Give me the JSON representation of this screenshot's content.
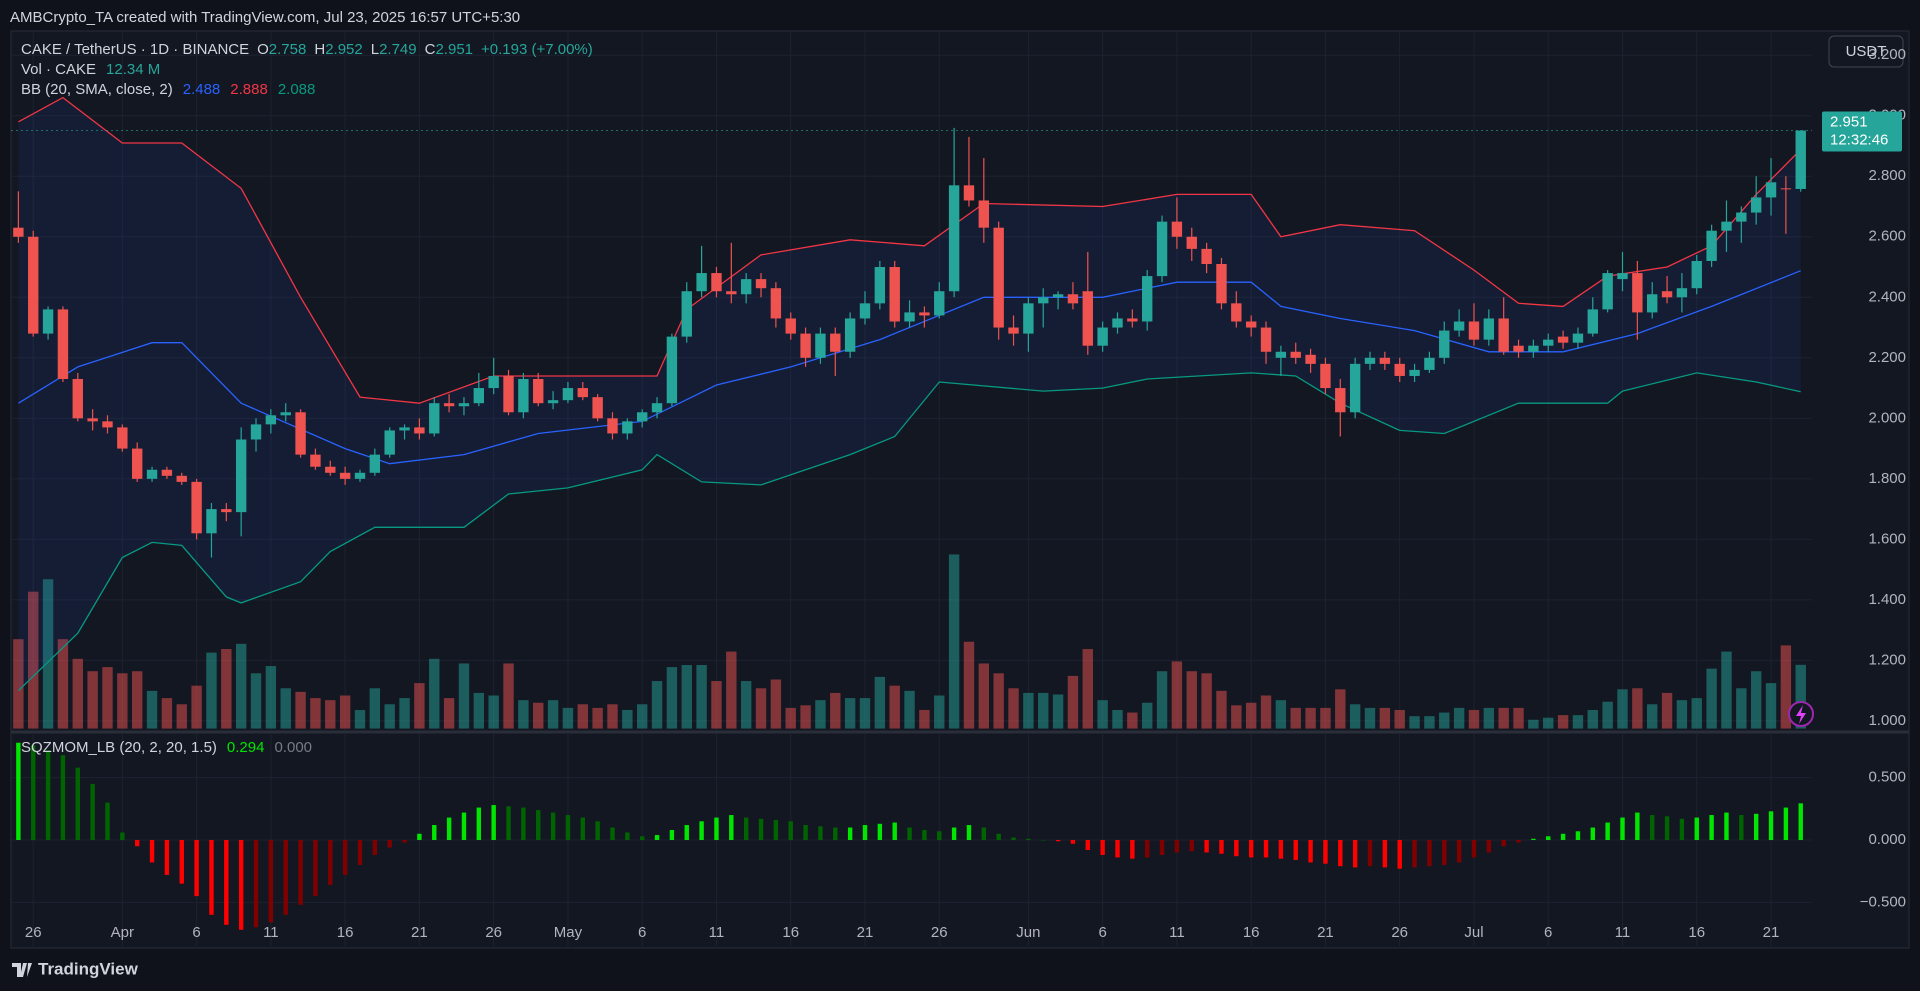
{
  "chart_data": {
    "type": "candlestick",
    "header": "AMBCrypto_TA created with TradingView.com, Jul 23, 2025 16:57 UTC+5:30",
    "title": "CAKE / TetherUS · 1D · BINANCE",
    "ohlc_letters": [
      "O",
      "H",
      "L",
      "C"
    ],
    "change_label": "+0.193 (+7.00%)",
    "currency": "USDT",
    "countdown": "12:32:46",
    "footer": "TradingView",
    "up_color": "#26a69a",
    "down_color": "#ef5350",
    "candles": [
      [
        2.63,
        2.75,
        2.58,
        2.6
      ],
      [
        2.6,
        2.62,
        2.27,
        2.28
      ],
      [
        2.28,
        2.37,
        2.26,
        2.36
      ],
      [
        2.36,
        2.37,
        2.12,
        2.13
      ],
      [
        2.13,
        2.15,
        1.99,
        2.0
      ],
      [
        2.0,
        2.03,
        1.96,
        1.99
      ],
      [
        1.99,
        2.01,
        1.95,
        1.97
      ],
      [
        1.97,
        1.98,
        1.89,
        1.9
      ],
      [
        1.9,
        1.92,
        1.79,
        1.8
      ],
      [
        1.8,
        1.84,
        1.79,
        1.83
      ],
      [
        1.83,
        1.84,
        1.8,
        1.81
      ],
      [
        1.81,
        1.82,
        1.78,
        1.79
      ],
      [
        1.79,
        1.8,
        1.6,
        1.62
      ],
      [
        1.62,
        1.72,
        1.54,
        1.7
      ],
      [
        1.7,
        1.72,
        1.66,
        1.69
      ],
      [
        1.69,
        1.97,
        1.61,
        1.93
      ],
      [
        1.93,
        2.0,
        1.89,
        1.98
      ],
      [
        1.98,
        2.03,
        1.95,
        2.01
      ],
      [
        2.01,
        2.05,
        1.99,
        2.02
      ],
      [
        2.02,
        2.03,
        1.87,
        1.88
      ],
      [
        1.88,
        1.9,
        1.83,
        1.84
      ],
      [
        1.84,
        1.86,
        1.81,
        1.82
      ],
      [
        1.82,
        1.84,
        1.78,
        1.8
      ],
      [
        1.8,
        1.83,
        1.79,
        1.82
      ],
      [
        1.82,
        1.9,
        1.81,
        1.88
      ],
      [
        1.88,
        1.97,
        1.87,
        1.96
      ],
      [
        1.96,
        1.98,
        1.93,
        1.97
      ],
      [
        1.97,
        2.0,
        1.93,
        1.95
      ],
      [
        1.95,
        2.07,
        1.94,
        2.05
      ],
      [
        2.05,
        2.08,
        2.02,
        2.04
      ],
      [
        2.04,
        2.07,
        2.01,
        2.05
      ],
      [
        2.05,
        2.15,
        2.04,
        2.1
      ],
      [
        2.1,
        2.2,
        2.08,
        2.14
      ],
      [
        2.14,
        2.16,
        2.01,
        2.02
      ],
      [
        2.02,
        2.15,
        2.0,
        2.13
      ],
      [
        2.13,
        2.15,
        2.04,
        2.05
      ],
      [
        2.05,
        2.09,
        2.03,
        2.06
      ],
      [
        2.06,
        2.12,
        2.05,
        2.1
      ],
      [
        2.1,
        2.12,
        2.06,
        2.07
      ],
      [
        2.07,
        2.08,
        1.99,
        2.0
      ],
      [
        2.0,
        2.02,
        1.93,
        1.95
      ],
      [
        1.95,
        2.0,
        1.93,
        1.99
      ],
      [
        1.99,
        2.03,
        1.97,
        2.02
      ],
      [
        2.02,
        2.07,
        2.0,
        2.05
      ],
      [
        2.05,
        2.28,
        2.04,
        2.27
      ],
      [
        2.27,
        2.45,
        2.25,
        2.42
      ],
      [
        2.42,
        2.57,
        2.4,
        2.48
      ],
      [
        2.48,
        2.5,
        2.4,
        2.42
      ],
      [
        2.42,
        2.58,
        2.38,
        2.41
      ],
      [
        2.41,
        2.48,
        2.38,
        2.46
      ],
      [
        2.46,
        2.48,
        2.4,
        2.43
      ],
      [
        2.43,
        2.45,
        2.3,
        2.33
      ],
      [
        2.33,
        2.35,
        2.26,
        2.28
      ],
      [
        2.28,
        2.3,
        2.17,
        2.2
      ],
      [
        2.2,
        2.3,
        2.18,
        2.28
      ],
      [
        2.28,
        2.3,
        2.14,
        2.22
      ],
      [
        2.22,
        2.35,
        2.2,
        2.33
      ],
      [
        2.33,
        2.42,
        2.31,
        2.38
      ],
      [
        2.38,
        2.52,
        2.36,
        2.5
      ],
      [
        2.5,
        2.52,
        2.3,
        2.32
      ],
      [
        2.32,
        2.39,
        2.3,
        2.35
      ],
      [
        2.35,
        2.37,
        2.3,
        2.34
      ],
      [
        2.34,
        2.45,
        2.33,
        2.42
      ],
      [
        2.42,
        2.96,
        2.4,
        2.77
      ],
      [
        2.77,
        2.93,
        2.7,
        2.72
      ],
      [
        2.72,
        2.86,
        2.58,
        2.63
      ],
      [
        2.63,
        2.65,
        2.26,
        2.3
      ],
      [
        2.3,
        2.34,
        2.24,
        2.28
      ],
      [
        2.28,
        2.4,
        2.22,
        2.38
      ],
      [
        2.38,
        2.43,
        2.3,
        2.4
      ],
      [
        2.4,
        2.42,
        2.36,
        2.41
      ],
      [
        2.41,
        2.45,
        2.36,
        2.38
      ],
      [
        2.42,
        2.55,
        2.21,
        2.24
      ],
      [
        2.24,
        2.32,
        2.22,
        2.3
      ],
      [
        2.3,
        2.35,
        2.28,
        2.33
      ],
      [
        2.33,
        2.36,
        2.3,
        2.32
      ],
      [
        2.32,
        2.49,
        2.29,
        2.47
      ],
      [
        2.47,
        2.67,
        2.45,
        2.65
      ],
      [
        2.65,
        2.73,
        2.56,
        2.6
      ],
      [
        2.6,
        2.63,
        2.52,
        2.56
      ],
      [
        2.56,
        2.58,
        2.48,
        2.51
      ],
      [
        2.51,
        2.53,
        2.36,
        2.38
      ],
      [
        2.38,
        2.42,
        2.3,
        2.32
      ],
      [
        2.32,
        2.34,
        2.27,
        2.3
      ],
      [
        2.3,
        2.32,
        2.18,
        2.22
      ],
      [
        2.2,
        2.24,
        2.14,
        2.22
      ],
      [
        2.22,
        2.25,
        2.18,
        2.2
      ],
      [
        2.21,
        2.23,
        2.15,
        2.18
      ],
      [
        2.18,
        2.2,
        2.08,
        2.1
      ],
      [
        2.1,
        2.13,
        1.94,
        2.02
      ],
      [
        2.02,
        2.2,
        2.0,
        2.18
      ],
      [
        2.18,
        2.22,
        2.16,
        2.2
      ],
      [
        2.2,
        2.22,
        2.16,
        2.18
      ],
      [
        2.18,
        2.2,
        2.12,
        2.14
      ],
      [
        2.14,
        2.18,
        2.12,
        2.16
      ],
      [
        2.16,
        2.22,
        2.15,
        2.2
      ],
      [
        2.2,
        2.32,
        2.18,
        2.29
      ],
      [
        2.29,
        2.36,
        2.27,
        2.32
      ],
      [
        2.32,
        2.38,
        2.24,
        2.26
      ],
      [
        2.26,
        2.36,
        2.24,
        2.33
      ],
      [
        2.33,
        2.4,
        2.21,
        2.22
      ],
      [
        2.24,
        2.26,
        2.2,
        2.22
      ],
      [
        2.22,
        2.26,
        2.2,
        2.24
      ],
      [
        2.24,
        2.28,
        2.22,
        2.26
      ],
      [
        2.27,
        2.29,
        2.23,
        2.25
      ],
      [
        2.25,
        2.3,
        2.23,
        2.28
      ],
      [
        2.28,
        2.4,
        2.27,
        2.36
      ],
      [
        2.36,
        2.49,
        2.35,
        2.48
      ],
      [
        2.46,
        2.55,
        2.42,
        2.48
      ],
      [
        2.48,
        2.52,
        2.26,
        2.35
      ],
      [
        2.35,
        2.45,
        2.33,
        2.41
      ],
      [
        2.42,
        2.47,
        2.38,
        2.4
      ],
      [
        2.4,
        2.48,
        2.35,
        2.43
      ],
      [
        2.43,
        2.54,
        2.41,
        2.52
      ],
      [
        2.52,
        2.64,
        2.5,
        2.62
      ],
      [
        2.62,
        2.72,
        2.55,
        2.65
      ],
      [
        2.65,
        2.7,
        2.58,
        2.68
      ],
      [
        2.68,
        2.8,
        2.64,
        2.73
      ],
      [
        2.73,
        2.86,
        2.67,
        2.78
      ],
      [
        2.76,
        2.8,
        2.61,
        2.758
      ],
      [
        2.758,
        2.952,
        2.749,
        2.951
      ]
    ],
    "volume": {
      "name": "Vol · CAKE",
      "last_label": "12.34 M",
      "values": [
        17.3,
        26.5,
        28.9,
        17.3,
        13.5,
        11.1,
        11.9,
        10.7,
        11.1,
        7.3,
        5.9,
        4.7,
        8.3,
        14.7,
        15.4,
        16.4,
        10.7,
        12.1,
        7.8,
        7.1,
        5.9,
        5.5,
        6.4,
        3.6,
        7.8,
        4.7,
        5.9,
        8.8,
        13.5,
        5.9,
        12.6,
        6.9,
        6.4,
        12.6,
        5.5,
        5.0,
        5.5,
        4.0,
        4.7,
        4.0,
        4.7,
        3.6,
        4.7,
        9.2,
        11.9,
        12.3,
        12.3,
        9.2,
        14.9,
        9.2,
        7.8,
        9.5,
        4.0,
        4.5,
        5.5,
        6.9,
        5.9,
        5.9,
        10.0,
        8.3,
        7.3,
        3.6,
        6.4,
        33.7,
        16.8,
        12.6,
        10.7,
        7.8,
        6.9,
        6.9,
        6.6,
        10.2,
        15.4,
        5.5,
        3.6,
        3.1,
        5.0,
        11.1,
        13.0,
        11.1,
        10.7,
        7.3,
        4.5,
        5.0,
        6.4,
        5.5,
        4.0,
        4.0,
        4.0,
        7.6,
        4.7,
        4.0,
        4.0,
        3.6,
        2.4,
        2.4,
        3.1,
        4.0,
        3.6,
        4.0,
        4.0,
        4.0,
        1.7,
        2.1,
        2.6,
        2.6,
        3.6,
        5.2,
        7.6,
        7.8,
        4.7,
        6.9,
        5.5,
        5.9,
        11.6,
        14.9,
        7.8,
        11.1,
        8.8,
        16.1,
        12.34
      ]
    },
    "bb": {
      "name": "BB (20, SMA, close, 2)",
      "basis": {
        "color": "#2962ff",
        "x": [
          0,
          4,
          9,
          11,
          15,
          22,
          25,
          30,
          35,
          42,
          47,
          52,
          58,
          65,
          73,
          78,
          83,
          85,
          89,
          94,
          99,
          104,
          109,
          114,
          120
        ],
        "values": [
          2.05,
          2.17,
          2.25,
          2.25,
          2.05,
          1.9,
          1.85,
          1.88,
          1.95,
          1.99,
          2.11,
          2.17,
          2.26,
          2.4,
          2.4,
          2.45,
          2.45,
          2.37,
          2.33,
          2.29,
          2.22,
          2.22,
          2.28,
          2.37,
          2.488
        ]
      },
      "upper": {
        "color": "#f23645",
        "x": [
          0,
          3,
          7,
          11,
          15,
          19,
          23,
          27,
          32,
          43,
          45,
          50,
          56,
          61,
          65,
          73,
          78,
          83,
          85,
          89,
          94,
          98,
          101,
          104,
          107,
          111,
          114,
          117,
          120
        ],
        "values": [
          2.98,
          3.06,
          2.91,
          2.91,
          2.76,
          2.4,
          2.07,
          2.05,
          2.14,
          2.14,
          2.36,
          2.54,
          2.59,
          2.57,
          2.71,
          2.7,
          2.74,
          2.74,
          2.6,
          2.64,
          2.62,
          2.49,
          2.38,
          2.37,
          2.47,
          2.5,
          2.57,
          2.74,
          2.888
        ]
      },
      "lower": {
        "color": "#089981",
        "x": [
          0,
          4,
          7,
          9,
          11,
          14,
          15,
          19,
          21,
          24,
          30,
          33,
          37,
          42,
          43,
          46,
          50,
          56,
          59,
          62,
          69,
          73,
          76,
          83,
          86,
          89,
          93,
          96,
          101,
          107,
          108,
          113,
          117,
          120
        ],
        "values": [
          1.1,
          1.29,
          1.54,
          1.59,
          1.58,
          1.41,
          1.39,
          1.46,
          1.56,
          1.64,
          1.64,
          1.75,
          1.77,
          1.83,
          1.88,
          1.79,
          1.78,
          1.88,
          1.94,
          2.12,
          2.09,
          2.1,
          2.13,
          2.15,
          2.14,
          2.05,
          1.96,
          1.95,
          2.05,
          2.05,
          2.09,
          2.15,
          2.12,
          2.088
        ]
      }
    },
    "momentum": {
      "name": "SQZMOM_LB (20, 2, 20, 1.5)",
      "signal": {
        "value": 0,
        "label": "0.000"
      },
      "colors": [
        "#00e600",
        "#006400",
        "#ff0000",
        "#800000"
      ],
      "values": [
        0.78,
        0.76,
        0.72,
        0.68,
        0.58,
        0.45,
        0.3,
        0.06,
        -0.05,
        -0.18,
        -0.28,
        -0.35,
        -0.45,
        -0.6,
        -0.68,
        -0.72,
        -0.7,
        -0.66,
        -0.6,
        -0.52,
        -0.45,
        -0.36,
        -0.28,
        -0.2,
        -0.12,
        -0.06,
        -0.02,
        0.05,
        0.12,
        0.18,
        0.22,
        0.26,
        0.28,
        0.27,
        0.26,
        0.24,
        0.22,
        0.2,
        0.18,
        0.15,
        0.1,
        0.06,
        0.03,
        0.04,
        0.08,
        0.12,
        0.15,
        0.18,
        0.2,
        0.18,
        0.17,
        0.16,
        0.15,
        0.12,
        0.11,
        0.1,
        0.1,
        0.12,
        0.13,
        0.14,
        0.1,
        0.08,
        0.07,
        0.1,
        0.12,
        0.1,
        0.05,
        0.02,
        0.01,
        0.0,
        -0.01,
        -0.03,
        -0.08,
        -0.12,
        -0.14,
        -0.15,
        -0.14,
        -0.12,
        -0.1,
        -0.09,
        -0.1,
        -0.11,
        -0.13,
        -0.14,
        -0.14,
        -0.15,
        -0.16,
        -0.18,
        -0.19,
        -0.21,
        -0.22,
        -0.21,
        -0.22,
        -0.23,
        -0.22,
        -0.21,
        -0.2,
        -0.18,
        -0.14,
        -0.1,
        -0.05,
        -0.02,
        0.01,
        0.03,
        0.05,
        0.07,
        0.1,
        0.14,
        0.18,
        0.22,
        0.2,
        0.19,
        0.17,
        0.18,
        0.2,
        0.22,
        0.2,
        0.21,
        0.23,
        0.26,
        0.294
      ],
      "ylim": [
        -0.85,
        0.85
      ],
      "yticks": [
        {
          "value": 0.5,
          "label": "0.500"
        },
        {
          "value": 0,
          "label": "0.000"
        },
        {
          "value": -0.5,
          "label": "−0.500"
        }
      ]
    },
    "ylim": [
      0.97,
      3.28
    ],
    "yticks": [
      {
        "value": 1.0,
        "label": "1.000"
      },
      {
        "value": 1.2,
        "label": "1.200"
      },
      {
        "value": 1.4,
        "label": "1.400"
      },
      {
        "value": 1.6,
        "label": "1.600"
      },
      {
        "value": 1.8,
        "label": "1.800"
      },
      {
        "value": 2.0,
        "label": "2.000"
      },
      {
        "value": 2.2,
        "label": "2.200"
      },
      {
        "value": 2.4,
        "label": "2.400"
      },
      {
        "value": 2.6,
        "label": "2.600"
      },
      {
        "value": 2.8,
        "label": "2.800"
      },
      {
        "value": 3.0,
        "label": "3.000"
      },
      {
        "value": 3.2,
        "label": "3.200"
      }
    ],
    "xticks": [
      {
        "value": 1,
        "label": "26"
      },
      {
        "value": 7,
        "label": "Apr"
      },
      {
        "value": 12,
        "label": "6"
      },
      {
        "value": 17,
        "label": "11"
      },
      {
        "value": 22,
        "label": "16"
      },
      {
        "value": 27,
        "label": "21"
      },
      {
        "value": 32,
        "label": "26"
      },
      {
        "value": 37,
        "label": "May"
      },
      {
        "value": 42,
        "label": "6"
      },
      {
        "value": 47,
        "label": "11"
      },
      {
        "value": 52,
        "label": "16"
      },
      {
        "value": 57,
        "label": "21"
      },
      {
        "value": 62,
        "label": "26"
      },
      {
        "value": 68,
        "label": "Jun"
      },
      {
        "value": 73,
        "label": "6"
      },
      {
        "value": 78,
        "label": "11"
      },
      {
        "value": 83,
        "label": "16"
      },
      {
        "value": 88,
        "label": "21"
      },
      {
        "value": 93,
        "label": "26"
      },
      {
        "value": 98,
        "label": "Jul"
      },
      {
        "value": 103,
        "label": "6"
      },
      {
        "value": 108,
        "label": "11"
      },
      {
        "value": 113,
        "label": "16"
      },
      {
        "value": 118,
        "label": "21"
      }
    ],
    "grid": true
  }
}
